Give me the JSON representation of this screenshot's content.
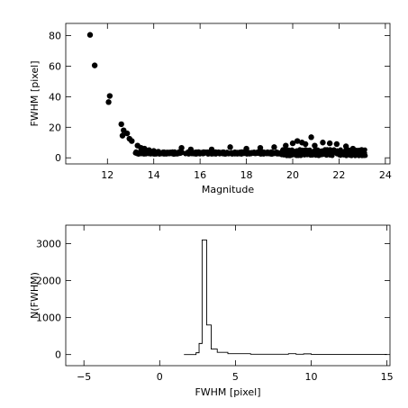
{
  "chart_data": [
    {
      "type": "scatter",
      "xlabel": "Magnitude",
      "ylabel": "FWHM [pixel]",
      "xlim": [
        10.2,
        24.2
      ],
      "ylim": [
        -4,
        88
      ],
      "xticks": [
        12,
        14,
        16,
        18,
        20,
        22,
        24
      ],
      "yticks": [
        0,
        20,
        40,
        60,
        80
      ],
      "grid": false,
      "marker_color": "#000000",
      "points": [
        [
          11.25,
          80.5
        ],
        [
          11.45,
          60.5
        ],
        [
          12.1,
          40.5
        ],
        [
          12.05,
          36.5
        ],
        [
          12.6,
          22.0
        ],
        [
          12.7,
          18.0
        ],
        [
          12.65,
          14.5
        ],
        [
          12.85,
          16.0
        ],
        [
          12.95,
          12.5
        ],
        [
          13.05,
          11.0
        ],
        [
          13.3,
          8.0
        ],
        [
          13.45,
          6.5
        ],
        [
          13.6,
          6.0
        ],
        [
          13.8,
          5.0
        ],
        [
          14.0,
          4.5
        ],
        [
          14.2,
          4.0
        ],
        [
          14.6,
          3.5
        ],
        [
          15.2,
          6.5
        ],
        [
          15.6,
          5.5
        ],
        [
          16.5,
          5.5
        ],
        [
          17.3,
          7.0
        ],
        [
          18.0,
          6.0
        ],
        [
          18.6,
          6.5
        ],
        [
          19.2,
          7.0
        ],
        [
          19.7,
          8.0
        ],
        [
          20.0,
          9.5
        ],
        [
          20.2,
          11.0
        ],
        [
          20.4,
          10.0
        ],
        [
          20.55,
          9.0
        ],
        [
          20.8,
          13.5
        ],
        [
          20.95,
          8.0
        ],
        [
          21.3,
          10.0
        ],
        [
          21.6,
          9.5
        ],
        [
          21.9,
          9.0
        ],
        [
          22.3,
          7.5
        ],
        [
          22.6,
          6.0
        ],
        [
          23.0,
          5.0
        ]
      ],
      "dense_band": {
        "x_range": [
          13.2,
          23.2
        ],
        "y_center": 3.0,
        "y_spread": 1.8
      }
    },
    {
      "type": "histogram",
      "xlabel": "FWHM [pixel]",
      "ylabel": "N(FWHM)",
      "xlim": [
        -6.2,
        15.2
      ],
      "ylim": [
        -300,
        3500
      ],
      "xticks": [
        -5,
        0,
        5,
        10,
        15
      ],
      "yticks": [
        0,
        1000,
        2000,
        3000
      ],
      "grid": false,
      "steps": [
        [
          1.6,
          0
        ],
        [
          2.4,
          50
        ],
        [
          2.6,
          300
        ],
        [
          2.8,
          3100
        ],
        [
          3.1,
          800
        ],
        [
          3.4,
          150
        ],
        [
          3.8,
          60
        ],
        [
          4.5,
          25
        ],
        [
          6.0,
          10
        ],
        [
          8.5,
          25
        ],
        [
          9.0,
          8
        ],
        [
          9.5,
          20
        ],
        [
          10.0,
          5
        ],
        [
          15.0,
          5
        ]
      ]
    }
  ]
}
